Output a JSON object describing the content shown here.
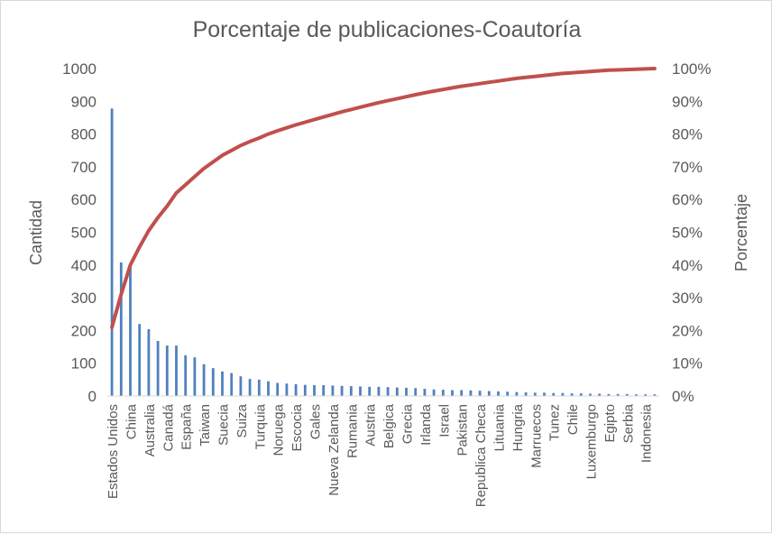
{
  "chart_data": {
    "type": "bar",
    "title": "Porcentaje de publicaciones-Coautoría",
    "ylabel": "Cantidad",
    "y2label": "Porcentaje",
    "ylim": [
      0,
      1000
    ],
    "y2lim": [
      0,
      100
    ],
    "yticks": [
      "0",
      "100",
      "200",
      "300",
      "400",
      "500",
      "600",
      "700",
      "800",
      "900",
      "1000"
    ],
    "y2ticks": [
      "0%",
      "10%",
      "20%",
      "30%",
      "40%",
      "50%",
      "60%",
      "70%",
      "80%",
      "90%",
      "100%"
    ],
    "grid": false,
    "legend": "none",
    "colors": {
      "bars": "#4f81bd",
      "line": "#c0504d"
    },
    "categories": [
      "Estados Unidos",
      "",
      "China",
      "",
      "Australia",
      "",
      "Canadá",
      "",
      "España",
      "",
      "Taiwan",
      "",
      "Suecia",
      "",
      "Suiza",
      "",
      "Turquia",
      "",
      "Noruega",
      "",
      "Escocia",
      "",
      "Gales",
      "",
      "Nueva Zelanda",
      "",
      "Rumania",
      "",
      "Austria",
      "",
      "Belgica",
      "",
      "Grecia",
      "",
      "Irlanda",
      "",
      "Israel",
      "",
      "Pakistan",
      "",
      "Republica Checa",
      "",
      "Lituania",
      "",
      "Hungria",
      "",
      "Marruecos",
      "",
      "Tunez",
      "",
      "Chile",
      "",
      "Luxemburgo",
      "",
      "Egipto",
      "",
      "Serbia",
      "",
      "Indonesia",
      ""
    ],
    "series": [
      {
        "kind": "bar",
        "values": [
          878,
          408,
          395,
          220,
          204,
          168,
          154,
          154,
          124,
          118,
          97,
          85,
          75,
          70,
          60,
          52,
          50,
          45,
          40,
          38,
          36,
          34,
          33,
          33,
          32,
          31,
          30,
          29,
          28,
          28,
          27,
          26,
          25,
          24,
          22,
          20,
          19,
          18,
          18,
          17,
          16,
          15,
          14,
          13,
          12,
          11,
          10,
          10,
          9,
          9,
          8,
          8,
          7,
          7,
          6,
          6,
          6,
          5,
          5,
          5
        ]
      },
      {
        "kind": "line",
        "axis": "right",
        "values": [
          21,
          31,
          40,
          45.5,
          50.5,
          54.5,
          58,
          62,
          64.5,
          67,
          69.5,
          71.5,
          73.5,
          75,
          76.5,
          77.7,
          78.8,
          80,
          81,
          81.9,
          82.8,
          83.6,
          84.4,
          85.2,
          86,
          86.8,
          87.5,
          88.2,
          88.9,
          89.6,
          90.2,
          90.8,
          91.4,
          92,
          92.6,
          93.1,
          93.6,
          94.1,
          94.6,
          95,
          95.4,
          95.8,
          96.2,
          96.6,
          97,
          97.3,
          97.6,
          97.9,
          98.2,
          98.5,
          98.7,
          98.9,
          99.1,
          99.3,
          99.5,
          99.6,
          99.7,
          99.8,
          99.9,
          100
        ]
      }
    ]
  }
}
